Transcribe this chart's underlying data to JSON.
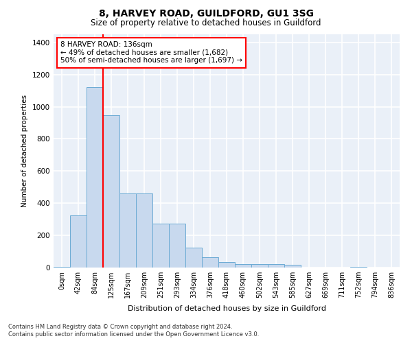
{
  "title_line1": "8, HARVEY ROAD, GUILDFORD, GU1 3SG",
  "title_line2": "Size of property relative to detached houses in Guildford",
  "xlabel": "Distribution of detached houses by size in Guildford",
  "ylabel": "Number of detached properties",
  "bar_labels": [
    "0sqm",
    "42sqm",
    "84sqm",
    "125sqm",
    "167sqm",
    "209sqm",
    "251sqm",
    "293sqm",
    "334sqm",
    "376sqm",
    "418sqm",
    "460sqm",
    "502sqm",
    "543sqm",
    "585sqm",
    "627sqm",
    "669sqm",
    "711sqm",
    "752sqm",
    "794sqm",
    "836sqm"
  ],
  "bar_values": [
    5,
    325,
    1120,
    945,
    460,
    460,
    275,
    275,
    125,
    65,
    35,
    20,
    20,
    20,
    15,
    0,
    0,
    0,
    5,
    0,
    0
  ],
  "bar_color": "#c8d9ee",
  "bar_edge_color": "#6aaad4",
  "background_color": "#eaf0f8",
  "grid_color": "#ffffff",
  "ylim": [
    0,
    1450
  ],
  "yticks": [
    0,
    200,
    400,
    600,
    800,
    1000,
    1200,
    1400
  ],
  "annotation_text": "8 HARVEY ROAD: 136sqm\n← 49% of detached houses are smaller (1,682)\n50% of semi-detached houses are larger (1,697) →",
  "red_line_x": 2.5,
  "footnote_line1": "Contains HM Land Registry data © Crown copyright and database right 2024.",
  "footnote_line2": "Contains public sector information licensed under the Open Government Licence v3.0."
}
